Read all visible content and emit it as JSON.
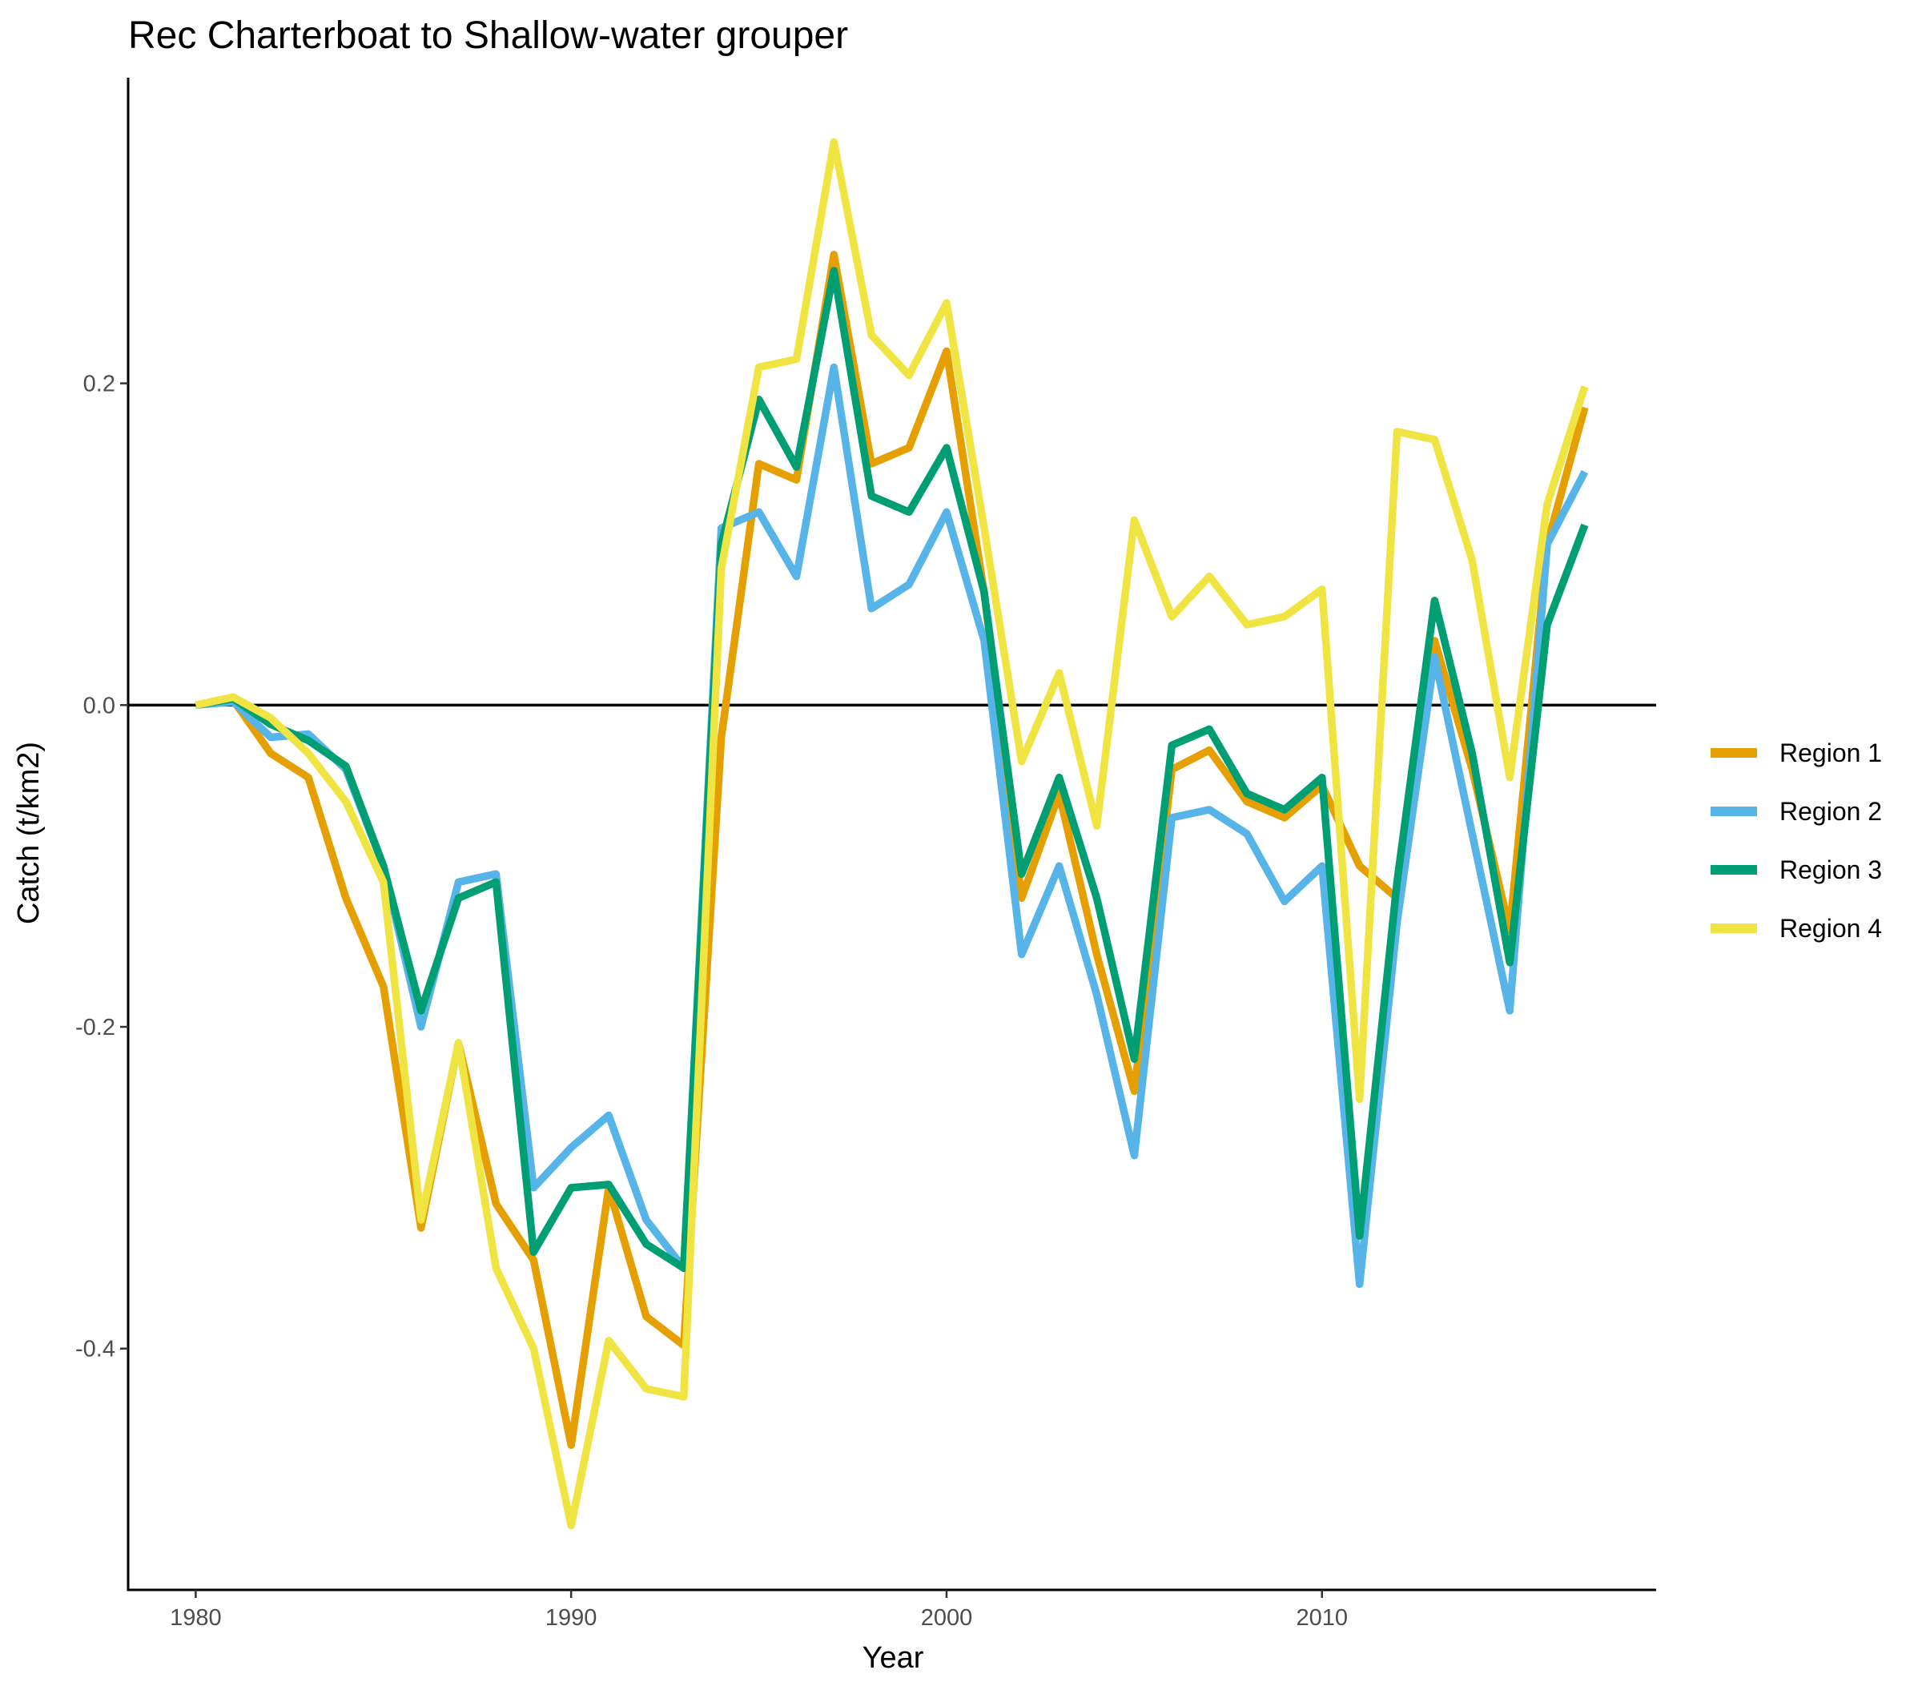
{
  "chart_data": {
    "type": "line",
    "title": "Rec Charterboat to Shallow-water grouper",
    "xlabel": "Year",
    "ylabel": "Catch (t/km2)",
    "xlim": [
      1978.2,
      2018.9
    ],
    "ylim": [
      -0.55,
      0.39
    ],
    "x_ticks": [
      1980,
      1990,
      2000,
      2010
    ],
    "x_tick_labels": [
      "1980",
      "1990",
      "2000",
      "2010"
    ],
    "y_ticks": [
      -0.4,
      -0.2,
      0.0,
      0.2
    ],
    "y_tick_labels": [
      "-0.4",
      "-0.2",
      "0.0",
      "0.2"
    ],
    "hline": 0,
    "grid": false,
    "legend": {
      "placement": "right"
    },
    "x": [
      1980,
      1981,
      1982,
      1983,
      1984,
      1985,
      1986,
      1987,
      1988,
      1989,
      1990,
      1991,
      1992,
      1993,
      1994,
      1995,
      1996,
      1997,
      1998,
      1999,
      2000,
      2001,
      2002,
      2003,
      2004,
      2005,
      2006,
      2007,
      2008,
      2009,
      2010,
      2011,
      2012,
      2013,
      2014,
      2015,
      2016,
      2017
    ],
    "series": [
      {
        "name": "Region 1",
        "color": "#E69F00",
        "values": [
          0.0,
          0.003,
          -0.03,
          -0.045,
          -0.12,
          -0.175,
          -0.325,
          -0.21,
          -0.31,
          -0.345,
          -0.46,
          -0.3,
          -0.38,
          -0.398,
          -0.02,
          0.15,
          0.14,
          0.28,
          0.15,
          0.16,
          0.22,
          0.07,
          -0.12,
          -0.055,
          -0.155,
          -0.24,
          -0.04,
          -0.028,
          -0.06,
          -0.07,
          -0.05,
          -0.1,
          -0.12,
          0.04,
          -0.04,
          -0.14,
          0.1,
          0.185
        ]
      },
      {
        "name": "Region 2",
        "color": "#56B4E9",
        "values": [
          0.0,
          0.002,
          -0.02,
          -0.018,
          -0.04,
          -0.1,
          -0.2,
          -0.11,
          -0.105,
          -0.3,
          -0.275,
          -0.255,
          -0.32,
          -0.35,
          0.11,
          0.12,
          0.08,
          0.21,
          0.06,
          0.075,
          0.12,
          0.04,
          -0.155,
          -0.1,
          -0.18,
          -0.28,
          -0.07,
          -0.065,
          -0.08,
          -0.122,
          -0.1,
          -0.36,
          -0.135,
          0.03,
          -0.08,
          -0.19,
          0.1,
          0.145
        ]
      },
      {
        "name": "Region 3",
        "color": "#009E73",
        "values": [
          0.0,
          0.004,
          -0.012,
          -0.022,
          -0.038,
          -0.1,
          -0.19,
          -0.12,
          -0.11,
          -0.34,
          -0.3,
          -0.298,
          -0.335,
          -0.35,
          0.1,
          0.19,
          0.148,
          0.27,
          0.13,
          0.12,
          0.16,
          0.07,
          -0.105,
          -0.045,
          -0.12,
          -0.22,
          -0.025,
          -0.015,
          -0.055,
          -0.065,
          -0.045,
          -0.33,
          -0.11,
          0.065,
          -0.03,
          -0.16,
          0.05,
          0.112
        ]
      },
      {
        "name": "Region 4",
        "color": "#F0E442",
        "values": [
          0.0,
          0.005,
          -0.008,
          -0.03,
          -0.06,
          -0.11,
          -0.32,
          -0.21,
          -0.35,
          -0.4,
          -0.51,
          -0.395,
          -0.425,
          -0.43,
          0.085,
          0.21,
          0.215,
          0.35,
          0.23,
          0.205,
          0.25,
          0.11,
          -0.035,
          0.02,
          -0.075,
          0.115,
          0.055,
          0.08,
          0.05,
          0.055,
          0.072,
          -0.245,
          0.17,
          0.165,
          0.09,
          -0.045,
          0.125,
          0.198
        ]
      }
    ]
  }
}
